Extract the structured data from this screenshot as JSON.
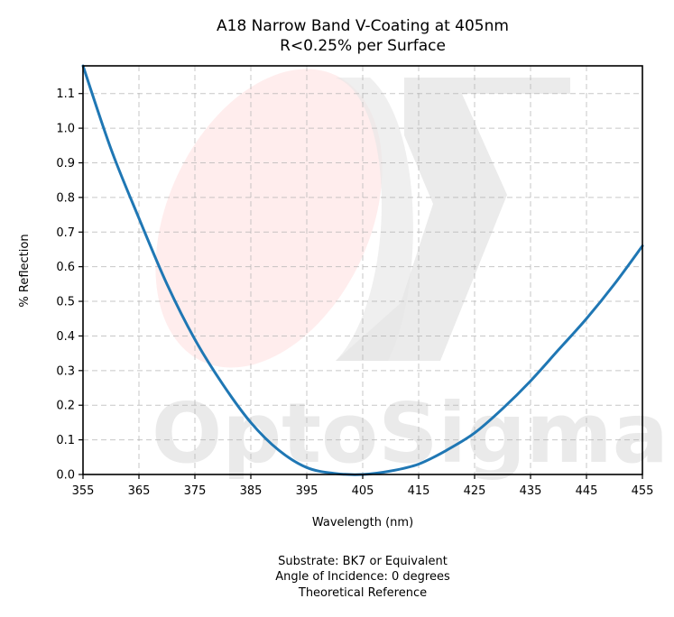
{
  "chart_data": {
    "type": "line",
    "title": "A18 Narrow Band V-Coating at 405nm",
    "subtitle": "R<0.25% per Surface",
    "xlabel": "Wavelength (nm)",
    "ylabel": "% Reflection",
    "xlim": [
      355,
      455
    ],
    "ylim": [
      0,
      1.18
    ],
    "xticks": [
      355,
      365,
      375,
      385,
      395,
      405,
      415,
      425,
      435,
      445,
      455
    ],
    "yticks": [
      0.0,
      0.1,
      0.2,
      0.3,
      0.4,
      0.5,
      0.6,
      0.7,
      0.8,
      0.9,
      1.0,
      1.1
    ],
    "grid": true,
    "series": [
      {
        "color": "#1f77b4",
        "x": [
          355,
          360,
          365,
          370,
          375,
          380,
          385,
          390,
          395,
          400,
          405,
          410,
          415,
          420,
          425,
          430,
          435,
          440,
          445,
          450,
          455
        ],
        "y": [
          1.18,
          0.94,
          0.74,
          0.55,
          0.39,
          0.26,
          0.15,
          0.07,
          0.02,
          0.003,
          0.0,
          0.01,
          0.03,
          0.07,
          0.12,
          0.19,
          0.27,
          0.36,
          0.45,
          0.55,
          0.66
        ]
      }
    ],
    "footnotes": [
      "Substrate: BK7 or Equivalent",
      "Angle of Incidence: 0 degrees",
      "Theoretical Reference"
    ]
  },
  "watermark": {
    "text": "OptoSigma",
    "logo_colors": [
      "#ffe8e8",
      "#e0e0e0"
    ]
  }
}
